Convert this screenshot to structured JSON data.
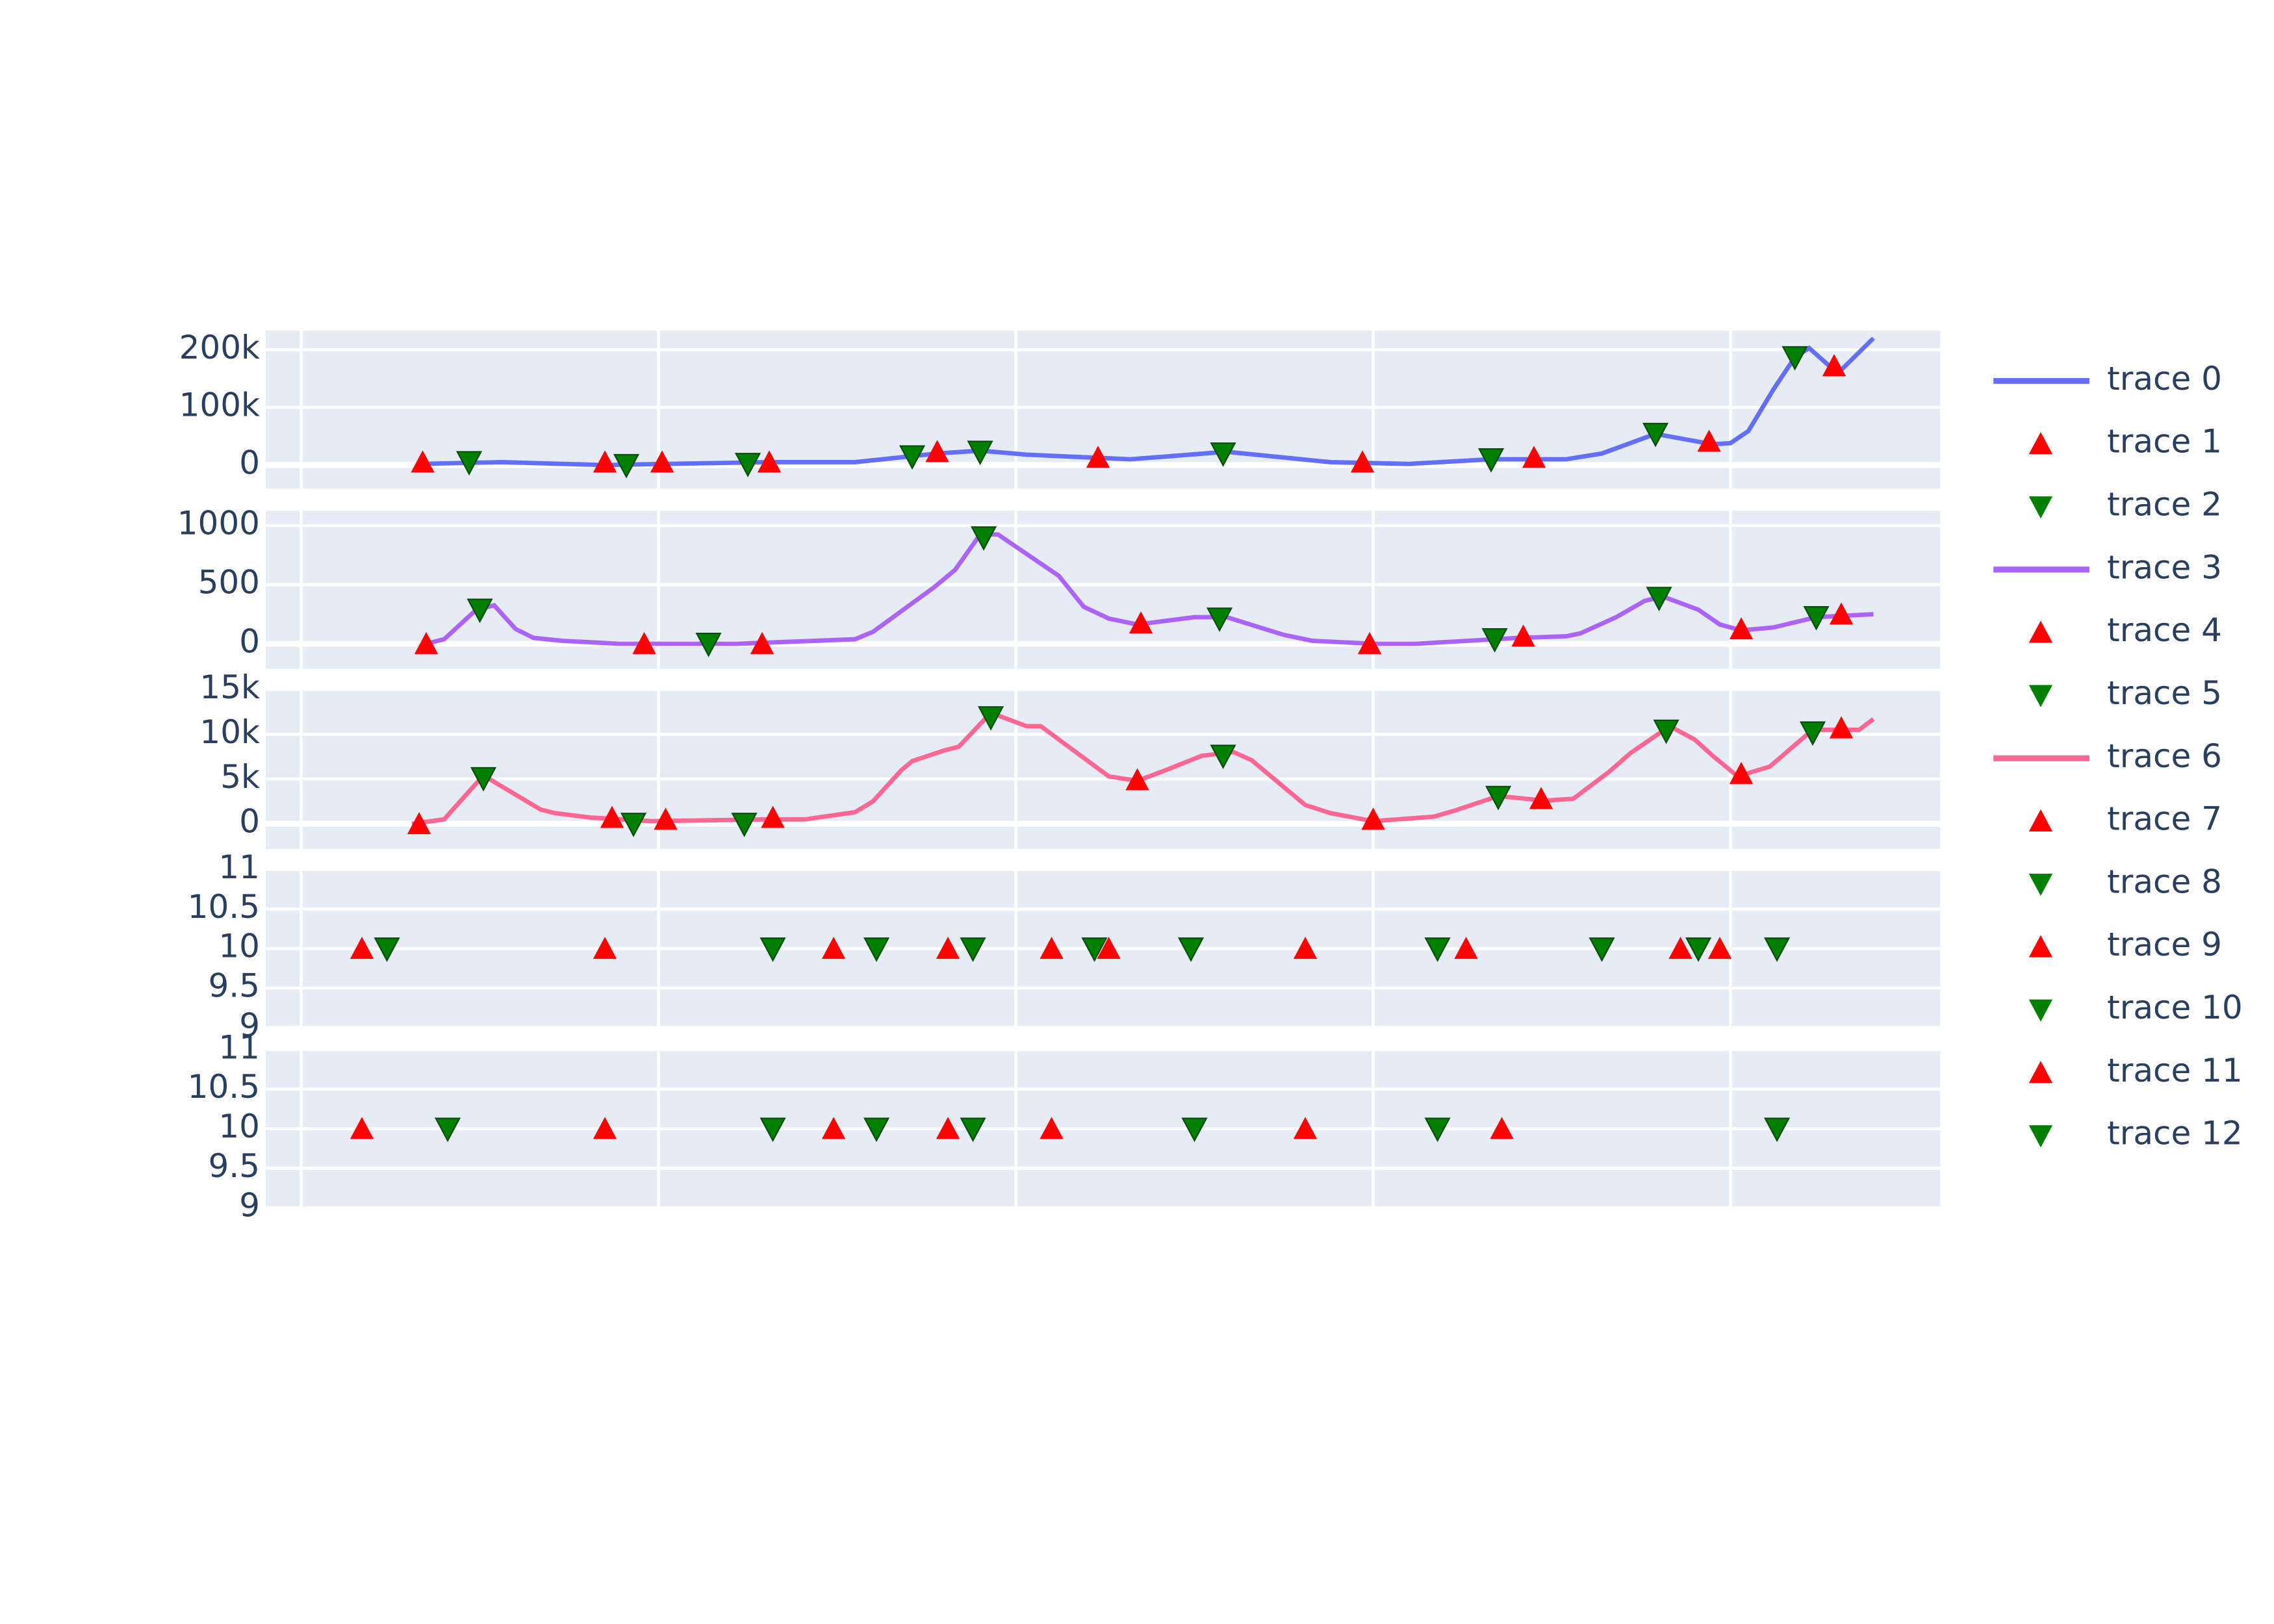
{
  "chart_data": [
    {
      "type": "line",
      "xlim": [
        -0.099,
        4.587
      ],
      "xticks": [
        0,
        1,
        2,
        3,
        4
      ],
      "xtick_labels": false,
      "ylim": [
        -41000,
        233000
      ],
      "yticks": [
        0,
        {
          "value": 100000,
          "label": "100k"
        },
        {
          "value": 200000,
          "label": "200k"
        }
      ],
      "grid": true,
      "series": [
        {
          "name": "trace 0",
          "mode": "lines",
          "color": "#636efa",
          "x": [
            0.33,
            0.56,
            0.85,
            1.02,
            1.31,
            1.55,
            1.78,
            1.9,
            2.03,
            2.32,
            2.59,
            2.88,
            3.1,
            3.33,
            3.54,
            3.64,
            3.79,
            3.95,
            4.0,
            4.05,
            4.12,
            4.18,
            4.22,
            4.3,
            4.4
          ],
          "values": [
            2000,
            5000,
            0,
            2000,
            5000,
            5000,
            20000,
            25000,
            18000,
            10000,
            23000,
            5000,
            2000,
            10000,
            10000,
            20000,
            54000,
            36000,
            38000,
            59000,
            131000,
            187000,
            203000,
            159000,
            220000
          ]
        },
        {
          "name": "trace 1",
          "mode": "markers",
          "symbol": "triangle-up",
          "color": "#ff0000",
          "x": [
            0.34,
            0.85,
            1.01,
            1.31,
            1.78,
            2.23,
            2.97,
            3.45,
            3.94,
            4.29
          ],
          "values": [
            5000,
            5000,
            5000,
            5000,
            23000,
            13000,
            5000,
            13000,
            41000,
            172000
          ]
        },
        {
          "name": "trace 2",
          "mode": "markers",
          "symbol": "triangle-down",
          "color": "#008000",
          "x": [
            0.47,
            0.91,
            1.25,
            1.71,
            1.9,
            2.58,
            3.33,
            3.79,
            4.18
          ],
          "values": [
            5000,
            0,
            2000,
            15000,
            23000,
            20000,
            10000,
            54000,
            187000
          ]
        }
      ]
    },
    {
      "type": "line",
      "xlim": [
        -0.099,
        4.587
      ],
      "xticks": [
        0,
        1,
        2,
        3,
        4
      ],
      "xtick_labels": false,
      "ylim": [
        -212,
        1125
      ],
      "yticks": [
        0,
        500,
        1000
      ],
      "grid": true,
      "series": [
        {
          "name": "trace 3",
          "mode": "lines",
          "color": "#ab63fa",
          "x": [
            0.35,
            0.4,
            0.49,
            0.54,
            0.6,
            0.65,
            0.73,
            0.89,
            1.22,
            1.55,
            1.6,
            1.77,
            1.83,
            1.9,
            1.95,
            2.12,
            2.19,
            2.26,
            2.34,
            2.5,
            2.59,
            2.75,
            2.83,
            3.0,
            3.12,
            3.41,
            3.54,
            3.58,
            3.68,
            3.76,
            3.81,
            3.91,
            3.97,
            4.03,
            4.12,
            4.24,
            4.4
          ],
          "values": [
            0,
            38,
            288,
            325,
            125,
            50,
            25,
            0,
            0,
            38,
            100,
            475,
            625,
            925,
            925,
            575,
            313,
            213,
            163,
            225,
            225,
            75,
            25,
            0,
            0,
            50,
            63,
            88,
            225,
            363,
            400,
            288,
            163,
            113,
            138,
            225,
            250
          ]
        },
        {
          "name": "trace 4",
          "mode": "markers",
          "symbol": "triangle-up",
          "color": "#ff0000",
          "x": [
            0.35,
            0.96,
            1.29,
            2.35,
            2.99,
            3.42,
            4.03,
            4.31
          ],
          "values": [
            0,
            0,
            0,
            175,
            0,
            63,
            125,
            250
          ]
        },
        {
          "name": "trace 5",
          "mode": "markers",
          "symbol": "triangle-down",
          "color": "#008000",
          "x": [
            0.5,
            1.14,
            1.91,
            2.57,
            3.34,
            3.8,
            4.24
          ],
          "values": [
            288,
            0,
            900,
            213,
            38,
            388,
            225
          ]
        }
      ]
    },
    {
      "type": "line",
      "xlim": [
        -0.099,
        4.587
      ],
      "xticks": [
        0,
        1,
        2,
        3,
        4
      ],
      "xtick_labels": false,
      "ylim": [
        -2800,
        15000
      ],
      "yticks": [
        0,
        {
          "value": 5000,
          "label": "5k"
        },
        {
          "value": 10000,
          "label": "10k"
        },
        {
          "value": 15000,
          "label": "15k"
        }
      ],
      "grid": true,
      "series": [
        {
          "name": "trace 6",
          "mode": "lines",
          "color": "#ff6692",
          "x": [
            0.31,
            0.4,
            0.51,
            0.67,
            0.71,
            0.81,
            0.98,
            1.31,
            1.41,
            1.55,
            1.6,
            1.68,
            1.71,
            1.8,
            1.84,
            1.93,
            2.03,
            2.07,
            2.26,
            2.34,
            2.42,
            2.52,
            2.61,
            2.66,
            2.81,
            2.88,
            3.0,
            3.17,
            3.23,
            3.35,
            3.48,
            3.56,
            3.66,
            3.72,
            3.83,
            3.9,
            3.95,
            4.02,
            4.11,
            4.23,
            4.31,
            4.36,
            4.4
          ],
          "values": [
            0,
            500,
            5400,
            1600,
            1200,
            700,
            300,
            500,
            500,
            1300,
            2500,
            6000,
            7000,
            8200,
            8600,
            12400,
            10900,
            10900,
            5300,
            4800,
            6000,
            7600,
            8000,
            7100,
            2100,
            1200,
            300,
            800,
            1500,
            3100,
            2600,
            2800,
            5800,
            7900,
            10900,
            9400,
            7600,
            5300,
            6400,
            10500,
            10500,
            10500,
            11700
          ]
        },
        {
          "name": "trace 7",
          "mode": "markers",
          "symbol": "triangle-up",
          "color": "#ff0000",
          "x": [
            0.33,
            0.87,
            1.02,
            1.32,
            2.34,
            3.0,
            3.47,
            4.03,
            4.31
          ],
          "values": [
            0,
            700,
            500,
            700,
            4900,
            500,
            2800,
            5600,
            10700
          ]
        },
        {
          "name": "trace 8",
          "mode": "markers",
          "symbol": "triangle-down",
          "color": "#008000",
          "x": [
            0.51,
            0.93,
            1.24,
            1.93,
            2.58,
            3.35,
            3.82,
            4.23
          ],
          "values": [
            5100,
            0,
            0,
            11900,
            7600,
            3000,
            10400,
            10200
          ]
        }
      ]
    },
    {
      "type": "line",
      "xlim": [
        -0.099,
        4.587
      ],
      "xticks": [
        0,
        1,
        2,
        3,
        4
      ],
      "xtick_labels": false,
      "ylim": [
        9,
        11
      ],
      "yticks": [
        9,
        9.5,
        10,
        10.5,
        11
      ],
      "grid": true,
      "series": [
        {
          "name": "trace 9",
          "mode": "markers",
          "symbol": "triangle-up",
          "color": "#ff0000",
          "x": [
            0.17,
            0.85,
            1.49,
            1.81,
            2.1,
            2.26,
            2.81,
            3.26,
            3.86,
            3.97
          ],
          "values": [
            10,
            10,
            10,
            10,
            10,
            10,
            10,
            10,
            10,
            10
          ]
        },
        {
          "name": "trace 10",
          "mode": "markers",
          "symbol": "triangle-down",
          "color": "#008000",
          "x": [
            0.24,
            1.32,
            1.61,
            1.88,
            2.22,
            2.49,
            3.18,
            3.64,
            3.91,
            4.13
          ],
          "values": [
            10,
            10,
            10,
            10,
            10,
            10,
            10,
            10,
            10,
            10
          ]
        }
      ]
    },
    {
      "type": "line",
      "xlim": [
        -0.099,
        4.587
      ],
      "xticks": [
        0,
        1,
        2,
        3,
        4
      ],
      "xtick_labels": false,
      "ylim": [
        9,
        11
      ],
      "yticks": [
        9,
        9.5,
        10,
        10.5,
        11
      ],
      "grid": true,
      "series": [
        {
          "name": "trace 11",
          "mode": "markers",
          "symbol": "triangle-up",
          "color": "#ff0000",
          "x": [
            0.17,
            0.85,
            1.49,
            1.81,
            2.1,
            2.81,
            3.36
          ],
          "values": [
            10,
            10,
            10,
            10,
            10,
            10,
            10
          ]
        },
        {
          "name": "trace 12",
          "mode": "markers",
          "symbol": "triangle-down",
          "color": "#008000",
          "x": [
            0.41,
            1.32,
            1.61,
            1.88,
            2.5,
            3.18,
            4.13
          ],
          "values": [
            10,
            10,
            10,
            10,
            10,
            10,
            10
          ]
        }
      ]
    }
  ]
}
